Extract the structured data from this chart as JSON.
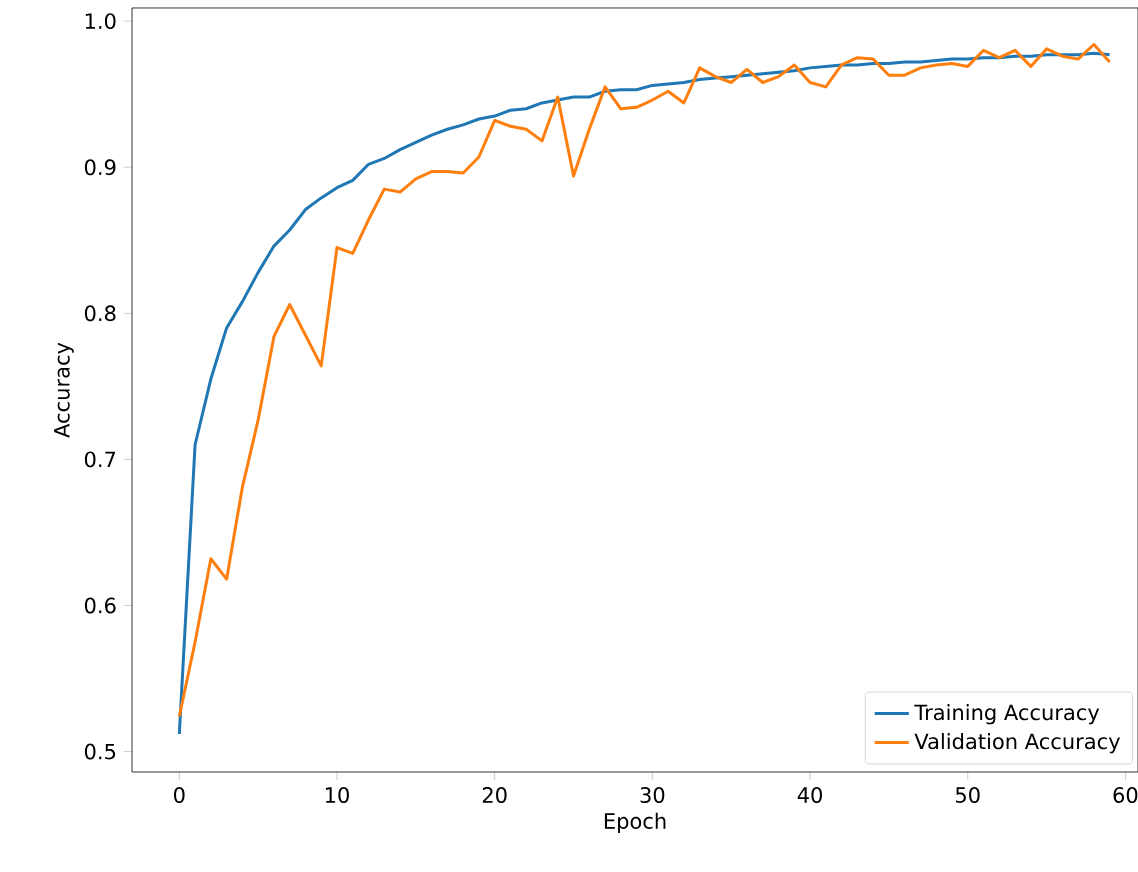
{
  "chart_data": {
    "type": "line",
    "xlabel": "Epoch",
    "ylabel": "Accuracy",
    "x": [
      0,
      1,
      2,
      3,
      4,
      5,
      6,
      7,
      8,
      9,
      10,
      11,
      12,
      13,
      14,
      15,
      16,
      17,
      18,
      19,
      20,
      21,
      22,
      23,
      24,
      25,
      26,
      27,
      28,
      29,
      30,
      31,
      32,
      33,
      34,
      35,
      36,
      37,
      38,
      39,
      40,
      41,
      42,
      43,
      44,
      45,
      46,
      47,
      48,
      49,
      50,
      51,
      52,
      53,
      54,
      55,
      56,
      57,
      58,
      59
    ],
    "xlim": [
      -3,
      60.8
    ],
    "ylim": [
      0.486,
      1.009
    ],
    "xticks": [
      0,
      10,
      20,
      30,
      40,
      50,
      60
    ],
    "yticks": [
      0.5,
      0.6,
      0.7,
      0.8,
      0.9,
      {
        "value": 1,
        "label": "1.0"
      }
    ],
    "legend": "bottom right",
    "series": [
      {
        "name": "Training Accuracy",
        "color": "#1f77b4",
        "values": [
          0.512,
          0.71,
          0.755,
          0.79,
          0.808,
          0.828,
          0.846,
          0.857,
          0.871,
          0.879,
          0.886,
          0.891,
          0.902,
          0.906,
          0.912,
          0.917,
          0.922,
          0.926,
          0.929,
          0.933,
          0.935,
          0.939,
          0.94,
          0.944,
          0.946,
          0.948,
          0.948,
          0.952,
          0.953,
          0.953,
          0.956,
          0.957,
          0.958,
          0.96,
          0.961,
          0.962,
          0.963,
          0.964,
          0.965,
          0.966,
          0.968,
          0.969,
          0.97,
          0.97,
          0.971,
          0.971,
          0.972,
          0.972,
          0.973,
          0.974,
          0.974,
          0.975,
          0.975,
          0.976,
          0.976,
          0.977,
          0.977,
          0.977,
          0.978,
          0.977
        ]
      },
      {
        "name": "Validation Accuracy",
        "color": "#ff7f0e",
        "values": [
          0.524,
          0.575,
          0.632,
          0.618,
          0.681,
          0.727,
          0.784,
          0.806,
          0.785,
          0.764,
          0.845,
          0.841,
          0.864,
          0.885,
          0.883,
          0.892,
          0.897,
          0.897,
          0.896,
          0.907,
          0.932,
          0.928,
          0.926,
          0.918,
          0.948,
          0.894,
          0.926,
          0.955,
          0.94,
          0.941,
          0.946,
          0.952,
          0.944,
          0.968,
          0.962,
          0.958,
          0.967,
          0.958,
          0.962,
          0.97,
          0.958,
          0.955,
          0.97,
          0.975,
          0.974,
          0.963,
          0.963,
          0.968,
          0.97,
          0.971,
          0.969,
          0.98,
          0.975,
          0.98,
          0.969,
          0.981,
          0.976,
          0.974,
          0.984,
          0.972
        ]
      }
    ]
  }
}
